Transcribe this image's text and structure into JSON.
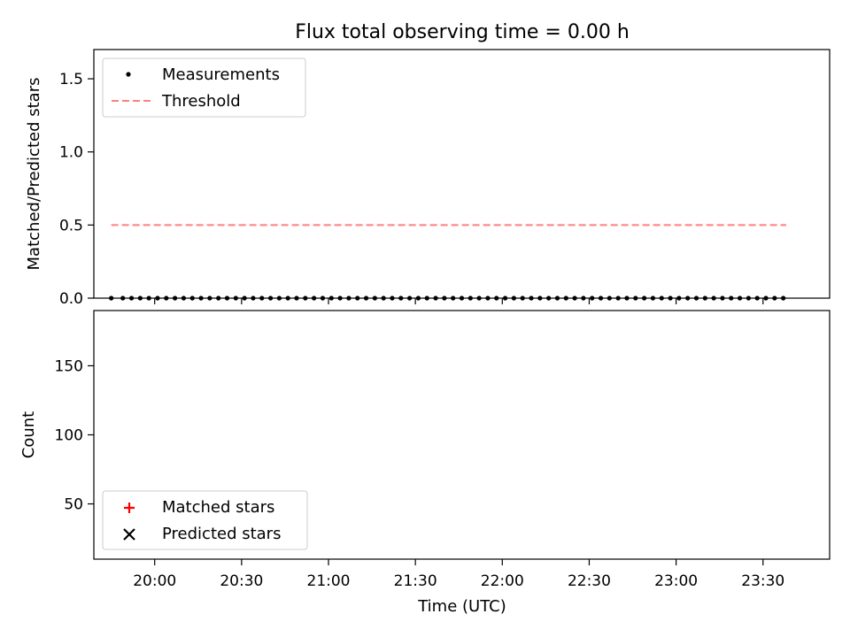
{
  "chart_data": [
    {
      "type": "scatter",
      "title": "Flux total observing time = 0.00 h",
      "ylabel": "Matched/Predicted stars",
      "xlabel": "",
      "xlim": [
        "19:39",
        "23:53"
      ],
      "ylim": [
        0,
        1.7
      ],
      "yticks": [
        "0.0",
        "0.5",
        "1.0",
        "1.5"
      ],
      "legend_position": "top-left",
      "grid": false,
      "series": [
        {
          "name": "Measurements",
          "kind": "points",
          "color": "#000000",
          "x": [
            "19:45",
            "19:49",
            "19:52",
            "19:55",
            "19:58",
            "20:01",
            "20:04",
            "20:07",
            "20:10",
            "20:13",
            "20:16",
            "20:19",
            "20:22",
            "20:25",
            "20:28",
            "20:31",
            "20:34",
            "20:37",
            "20:40",
            "20:43",
            "20:46",
            "20:49",
            "20:52",
            "20:55",
            "20:58",
            "21:01",
            "21:04",
            "21:07",
            "21:10",
            "21:13",
            "21:16",
            "21:19",
            "21:22",
            "21:25",
            "21:28",
            "21:31",
            "21:34",
            "21:37",
            "21:40",
            "21:43",
            "21:46",
            "21:49",
            "21:52",
            "21:55",
            "21:58",
            "22:01",
            "22:04",
            "22:07",
            "22:10",
            "22:13",
            "22:16",
            "22:19",
            "22:22",
            "22:25",
            "22:28",
            "22:31",
            "22:34",
            "22:37",
            "22:40",
            "22:43",
            "22:46",
            "22:49",
            "22:52",
            "22:55",
            "22:58",
            "23:01",
            "23:04",
            "23:07",
            "23:10",
            "23:13",
            "23:16",
            "23:19",
            "23:22",
            "23:25",
            "23:28",
            "23:31",
            "23:34",
            "23:37"
          ],
          "values": [
            0,
            0,
            0,
            0,
            0,
            0,
            0,
            0,
            0,
            0,
            0,
            0,
            0,
            0,
            0,
            0,
            0,
            0,
            0,
            0,
            0,
            0,
            0,
            0,
            0,
            0,
            0,
            0,
            0,
            0,
            0,
            0,
            0,
            0,
            0,
            0,
            0,
            0,
            0,
            0,
            0,
            0,
            0,
            0,
            0,
            0,
            0,
            0,
            0,
            0,
            0,
            0,
            0,
            0,
            0,
            0,
            0,
            0,
            0,
            0,
            0,
            0,
            0,
            0,
            0,
            0,
            0,
            0,
            0,
            0,
            0,
            0,
            0,
            0,
            0,
            0,
            0,
            0
          ]
        },
        {
          "name": "Threshold",
          "kind": "dashed-line",
          "color": "#ff7f7f",
          "x": [
            "19:45",
            "23:38"
          ],
          "values": [
            0.5,
            0.5
          ]
        }
      ]
    },
    {
      "type": "scatter",
      "title": "",
      "ylabel": "Count",
      "xlabel": "Time (UTC)",
      "xlim": [
        "19:39",
        "23:53"
      ],
      "ylim": [
        10,
        190
      ],
      "yticks": [
        "50",
        "100",
        "150"
      ],
      "xticks": [
        "20:00",
        "20:30",
        "21:00",
        "21:30",
        "22:00",
        "22:30",
        "23:00",
        "23:30"
      ],
      "legend_position": "bottom-left",
      "grid": false,
      "series": [
        {
          "name": "Matched stars",
          "marker": "+",
          "color": "#ff0000",
          "x": [],
          "values": []
        },
        {
          "name": "Predicted stars",
          "marker": "x",
          "color": "#000000",
          "x": [],
          "values": []
        }
      ]
    }
  ]
}
